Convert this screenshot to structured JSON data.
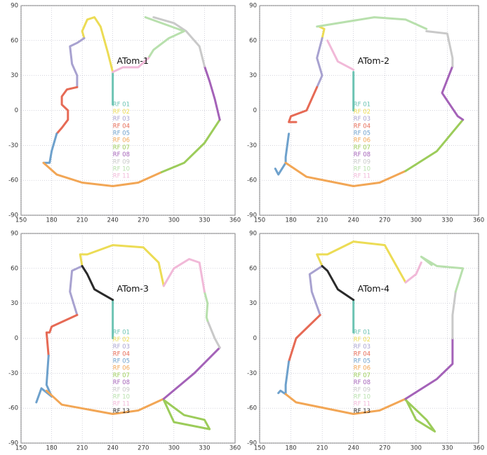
{
  "chart_data": [
    {
      "type": "line",
      "title": "ATom-1",
      "xlim": [
        150,
        360
      ],
      "ylim": [
        -90,
        90
      ],
      "xticks": [
        150,
        180,
        210,
        240,
        270,
        300,
        330,
        360
      ],
      "yticks": [
        -90,
        -60,
        -30,
        0,
        30,
        60,
        90
      ],
      "grid": true,
      "series": [
        {
          "name": "RF 01",
          "color": "#6cc3b3",
          "x": [
            240,
            240
          ],
          "values": [
            33,
            5
          ]
        },
        {
          "name": "RF 02",
          "color": "#ecdc55",
          "x": [
            240,
            235,
            228,
            222,
            215,
            210,
            212
          ],
          "values": [
            33,
            50,
            72,
            80,
            78,
            68,
            62
          ]
        },
        {
          "name": "RF 03",
          "color": "#a8a2d0",
          "x": [
            212,
            205,
            198,
            200,
            205,
            205
          ],
          "values": [
            62,
            58,
            55,
            40,
            30,
            20
          ]
        },
        {
          "name": "RF 04",
          "color": "#e66a55",
          "x": [
            205,
            195,
            190,
            190,
            196,
            196,
            190,
            185
          ],
          "values": [
            20,
            18,
            12,
            5,
            0,
            -8,
            -15,
            -20
          ]
        },
        {
          "name": "RF 05",
          "color": "#6ea1cc",
          "x": [
            185,
            180,
            178,
            172
          ],
          "values": [
            -20,
            -35,
            -45,
            -45
          ]
        },
        {
          "name": "RF 06",
          "color": "#f2a655",
          "x": [
            172,
            185,
            210,
            240,
            265,
            288
          ],
          "values": [
            -45,
            -55,
            -62,
            -65,
            -62,
            -53
          ]
        },
        {
          "name": "RF 07",
          "color": "#9ccc5a",
          "x": [
            288,
            310,
            330,
            345
          ],
          "values": [
            -53,
            -45,
            -28,
            -8
          ]
        },
        {
          "name": "RF 08",
          "color": "#a462b8",
          "x": [
            345,
            340,
            335,
            330
          ],
          "values": [
            -8,
            10,
            25,
            38
          ]
        },
        {
          "name": "RF 09",
          "color": "#c9c9c9",
          "x": [
            330,
            325,
            312,
            300,
            280
          ],
          "values": [
            38,
            55,
            68,
            75,
            80
          ]
        },
        {
          "name": "RF 10",
          "color": "#b8e0ad",
          "x": [
            272,
            310,
            295,
            280,
            275
          ],
          "values": [
            80,
            68,
            62,
            52,
            45
          ]
        },
        {
          "name": "RF 11",
          "color": "#f1b9d8",
          "x": [
            275,
            265,
            250,
            240
          ],
          "values": [
            45,
            37,
            37,
            33
          ]
        }
      ]
    },
    {
      "type": "line",
      "title": "ATom-2",
      "xlim": [
        150,
        360
      ],
      "ylim": [
        -90,
        90
      ],
      "xticks": [
        150,
        180,
        210,
        240,
        270,
        300,
        330,
        360
      ],
      "yticks": [
        -90,
        -60,
        -30,
        0,
        30,
        60,
        90
      ],
      "grid": true,
      "series": [
        {
          "name": "RF 01",
          "color": "#6cc3b3",
          "x": [
            240,
            240
          ],
          "values": [
            33,
            0
          ]
        },
        {
          "name": "RF 02",
          "color": "#ecdc55",
          "x": [
            207,
            212,
            210
          ],
          "values": [
            72,
            70,
            62
          ]
        },
        {
          "name": "RF 03",
          "color": "#a8a2d0",
          "x": [
            210,
            205,
            210,
            205
          ],
          "values": [
            62,
            45,
            30,
            20
          ]
        },
        {
          "name": "RF 04",
          "color": "#e66a55",
          "x": [
            205,
            195,
            180,
            178,
            185
          ],
          "values": [
            20,
            0,
            -5,
            -10,
            -10
          ]
        },
        {
          "name": "RF 05",
          "color": "#6ea1cc",
          "x": [
            178,
            175,
            175,
            168,
            165
          ],
          "values": [
            -20,
            -40,
            -45,
            -55,
            -50
          ]
        },
        {
          "name": "RF 06",
          "color": "#f2a655",
          "x": [
            175,
            195,
            240,
            265,
            290
          ],
          "values": [
            -45,
            -57,
            -65,
            -62,
            -52
          ]
        },
        {
          "name": "RF 07",
          "color": "#9ccc5a",
          "x": [
            290,
            320,
            345
          ],
          "values": [
            -52,
            -35,
            -8
          ]
        },
        {
          "name": "RF 08",
          "color": "#a462b8",
          "x": [
            345,
            340,
            325,
            335
          ],
          "values": [
            -8,
            -5,
            15,
            38
          ]
        },
        {
          "name": "RF 09",
          "color": "#c9c9c9",
          "x": [
            335,
            335,
            330,
            310
          ],
          "values": [
            38,
            45,
            66,
            68
          ]
        },
        {
          "name": "RF 10",
          "color": "#b8e0ad",
          "x": [
            310,
            290,
            260,
            205
          ],
          "values": [
            70,
            78,
            80,
            72
          ]
        },
        {
          "name": "RF 11",
          "color": "#f1b9d8",
          "x": [
            215,
            225,
            240
          ],
          "values": [
            60,
            42,
            35
          ]
        }
      ]
    },
    {
      "type": "line",
      "title": "ATom-3",
      "xlim": [
        150,
        360
      ],
      "ylim": [
        -90,
        90
      ],
      "xticks": [
        150,
        180,
        210,
        240,
        270,
        300,
        330,
        360
      ],
      "yticks": [
        -90,
        -60,
        -30,
        0,
        30,
        60,
        90
      ],
      "grid": true,
      "series": [
        {
          "name": "RF 01",
          "color": "#6cc3b3",
          "x": [
            240,
            240
          ],
          "values": [
            33,
            0
          ]
        },
        {
          "name": "RF 02",
          "color": "#ecdc55",
          "x": [
            210,
            208,
            215,
            240,
            270,
            285,
            290
          ],
          "values": [
            62,
            72,
            72,
            80,
            78,
            65,
            45
          ]
        },
        {
          "name": "RF 03",
          "color": "#a8a2d0",
          "x": [
            210,
            200,
            198,
            205
          ],
          "values": [
            62,
            58,
            40,
            20
          ]
        },
        {
          "name": "RF 04",
          "color": "#e66a55",
          "x": [
            205,
            180,
            178,
            175,
            177
          ],
          "values": [
            20,
            10,
            5,
            5,
            -15
          ]
        },
        {
          "name": "RF 05",
          "color": "#6ea1cc",
          "x": [
            177,
            175,
            180,
            170,
            165
          ],
          "values": [
            -15,
            -40,
            -50,
            -43,
            -55
          ]
        },
        {
          "name": "RF 06",
          "color": "#f2a655",
          "x": [
            175,
            190,
            240,
            265,
            290
          ],
          "values": [
            -45,
            -57,
            -65,
            -62,
            -52
          ]
        },
        {
          "name": "RF 07",
          "color": "#9ccc5a",
          "x": [
            290,
            300,
            335,
            330,
            310,
            290
          ],
          "values": [
            -53,
            -72,
            -78,
            -70,
            -66,
            -53
          ]
        },
        {
          "name": "RF 08",
          "color": "#a462b8",
          "x": [
            290,
            320,
            345
          ],
          "values": [
            -52,
            -30,
            -8
          ]
        },
        {
          "name": "RF 09",
          "color": "#c9c9c9",
          "x": [
            345,
            340,
            333
          ],
          "values": [
            -8,
            0,
            15
          ]
        },
        {
          "name": "RF 10",
          "color": "#b8e0ad",
          "x": [
            333,
            332,
            333,
            330
          ],
          "values": [
            15,
            18,
            30,
            40
          ]
        },
        {
          "name": "RF 11",
          "color": "#f1b9d8",
          "x": [
            330,
            325,
            315,
            300,
            290
          ],
          "values": [
            40,
            65,
            68,
            60,
            45
          ]
        },
        {
          "name": "RF 13",
          "color": "#2a2a2a",
          "x": [
            240,
            230,
            222,
            215,
            210
          ],
          "values": [
            33,
            38,
            42,
            55,
            62
          ]
        }
      ]
    },
    {
      "type": "line",
      "title": "ATom-4",
      "xlim": [
        150,
        360
      ],
      "ylim": [
        -90,
        90
      ],
      "xticks": [
        150,
        180,
        210,
        240,
        270,
        300,
        330,
        360
      ],
      "yticks": [
        -90,
        -60,
        -30,
        0,
        30,
        60,
        90
      ],
      "grid": true,
      "series": [
        {
          "name": "RF 01",
          "color": "#6cc3b3",
          "x": [
            240,
            240
          ],
          "values": [
            33,
            5
          ]
        },
        {
          "name": "RF 02",
          "color": "#ecdc55",
          "x": [
            210,
            205,
            215,
            240,
            270,
            290
          ],
          "values": [
            62,
            72,
            72,
            83,
            80,
            48
          ]
        },
        {
          "name": "RF 03",
          "color": "#a8a2d0",
          "x": [
            210,
            198,
            200,
            208
          ],
          "values": [
            62,
            55,
            40,
            20
          ]
        },
        {
          "name": "RF 04",
          "color": "#e66a55",
          "x": [
            208,
            185,
            178
          ],
          "values": [
            20,
            0,
            -20
          ]
        },
        {
          "name": "RF 05",
          "color": "#6ea1cc",
          "x": [
            178,
            175,
            175,
            170,
            168
          ],
          "values": [
            -20,
            -40,
            -48,
            -45,
            -47
          ]
        },
        {
          "name": "RF 06",
          "color": "#f2a655",
          "x": [
            175,
            185,
            240,
            265,
            290
          ],
          "values": [
            -48,
            -55,
            -65,
            -62,
            -52
          ]
        },
        {
          "name": "RF 07",
          "color": "#9ccc5a",
          "x": [
            290,
            300,
            318,
            310,
            290
          ],
          "values": [
            -52,
            -70,
            -80,
            -70,
            -53
          ]
        },
        {
          "name": "RF 08",
          "color": "#a462b8",
          "x": [
            290,
            320,
            335,
            335
          ],
          "values": [
            -52,
            -35,
            -22,
            0
          ]
        },
        {
          "name": "RF 09",
          "color": "#c9c9c9",
          "x": [
            335,
            335,
            338
          ],
          "values": [
            0,
            20,
            40
          ]
        },
        {
          "name": "RF 10",
          "color": "#b8e0ad",
          "x": [
            338,
            345,
            320,
            305,
            315
          ],
          "values": [
            40,
            60,
            62,
            70,
            63
          ]
        },
        {
          "name": "RF 11",
          "color": "#f1b9d8",
          "x": [
            290,
            300,
            305
          ],
          "values": [
            48,
            55,
            65
          ]
        },
        {
          "name": "RF 13",
          "color": "#2a2a2a",
          "x": [
            240,
            225,
            215,
            210
          ],
          "values": [
            33,
            42,
            58,
            62
          ]
        }
      ]
    }
  ]
}
